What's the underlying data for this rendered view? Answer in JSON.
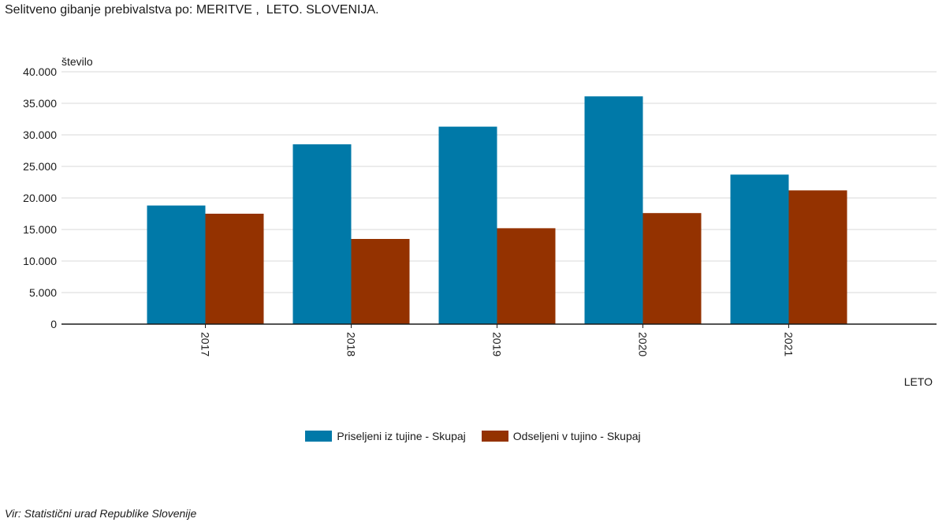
{
  "chart_data": {
    "type": "bar",
    "title": "Selitveno gibanje prebivalstva po: MERITVE ,  LETO. SLOVENIJA.",
    "xlabel": "LETO",
    "ylabel": "število",
    "categories": [
      "2017",
      "2018",
      "2019",
      "2020",
      "2021"
    ],
    "series": [
      {
        "name": "Priseljeni iz tujine - Skupaj",
        "color": "#0079a8",
        "values": [
          18800,
          28500,
          31300,
          36100,
          23700
        ]
      },
      {
        "name": "Odseljeni v tujino - Skupaj",
        "color": "#943200",
        "values": [
          17500,
          13500,
          15200,
          17600,
          21200
        ]
      }
    ],
    "ylim": [
      0,
      40000
    ],
    "yticks": [
      0,
      5000,
      10000,
      15000,
      20000,
      25000,
      30000,
      35000,
      40000
    ],
    "ytick_labels": [
      "0",
      "5.000",
      "10.000",
      "15.000",
      "20.000",
      "25.000",
      "30.000",
      "35.000",
      "40.000"
    ],
    "grid": true,
    "legend_position": "bottom-center"
  },
  "source": "Vir: Statistični urad Republike Slovenije"
}
